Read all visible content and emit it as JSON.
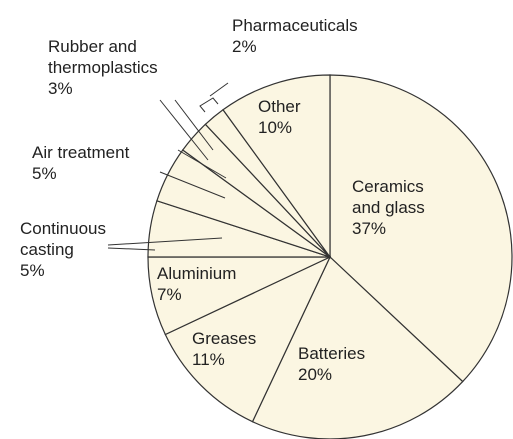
{
  "chart_data": {
    "type": "pie",
    "categories": [
      "Ceramics and glass",
      "Batteries",
      "Greases",
      "Aluminium",
      "Continuous casting",
      "Air treatment",
      "Rubber and thermoplastics",
      "Pharmaceuticals",
      "Other"
    ],
    "values": [
      37,
      20,
      11,
      7,
      5,
      5,
      3,
      2,
      10
    ],
    "value_labels": [
      "37%",
      "20%",
      "11%",
      "7%",
      "5%",
      "5%",
      "3%",
      "2%",
      "10%"
    ],
    "color": "#fbf6e2"
  }
}
